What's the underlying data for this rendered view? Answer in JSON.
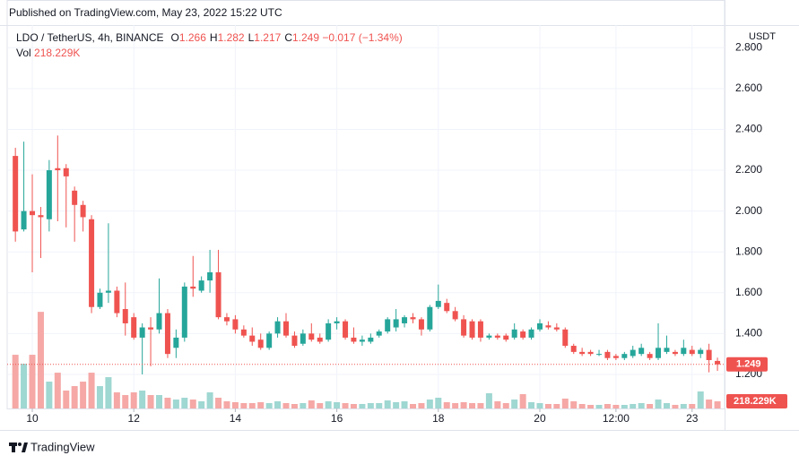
{
  "header": "Published on TradingView.com, May 23, 2022 15:22 UTC",
  "footer": "TradingView",
  "chart_data": {
    "type": "candlestick",
    "legend": {
      "symbol": "LDO / TetherUS, 4h, BINANCE",
      "fields": [
        {
          "label": "O",
          "value": 1.266
        },
        {
          "label": "H",
          "value": 1.282
        },
        {
          "label": "L",
          "value": 1.217
        },
        {
          "label": "C",
          "value": 1.249
        }
      ],
      "change": "−0.017 (−1.34%)",
      "volume_label": "Vol"
    },
    "y_unit": "USDT",
    "up_color": "#26a69a",
    "down_color": "#ef5350",
    "volume_up_color": "#9fd7d2",
    "volume_down_color": "#f5a8a6",
    "grid": true,
    "xlim": [
      9.505,
      23.64
    ],
    "xticks": [
      10,
      12,
      14,
      16,
      18,
      20,
      {
        "value": 21.5,
        "label": "12:00"
      },
      23
    ],
    "ylim": [
      1.033,
      2.911
    ],
    "yticks": [
      {
        "value": 1.2,
        "label": "1.200"
      },
      {
        "value": 1.4,
        "label": "1.400"
      },
      {
        "value": 1.6,
        "label": "1.600"
      },
      {
        "value": 1.8,
        "label": "1.800"
      },
      {
        "value": 2.0,
        "label": "2.000"
      },
      {
        "value": 2.2,
        "label": "2.200"
      },
      {
        "value": 2.4,
        "label": "2.400"
      },
      {
        "value": 2.6,
        "label": "2.600"
      },
      {
        "value": 2.8,
        "label": "2.800"
      }
    ],
    "volume_lim": [
      0,
      11700000
    ],
    "last_price": 1.249,
    "last_volume": {
      "value": 218229,
      "label": "218.229K"
    },
    "x": [
      9.667,
      9.833,
      10,
      10.167,
      10.333,
      10.5,
      10.667,
      10.833,
      11,
      11.167,
      11.333,
      11.5,
      11.667,
      11.833,
      12,
      12.167,
      12.333,
      12.5,
      12.667,
      12.833,
      13,
      13.167,
      13.333,
      13.5,
      13.667,
      13.833,
      14,
      14.167,
      14.333,
      14.5,
      14.667,
      14.833,
      15,
      15.167,
      15.333,
      15.5,
      15.667,
      15.833,
      16,
      16.167,
      16.333,
      16.5,
      16.667,
      16.833,
      17,
      17.167,
      17.333,
      17.5,
      17.667,
      17.833,
      18,
      18.167,
      18.333,
      18.5,
      18.667,
      18.833,
      19,
      19.167,
      19.333,
      19.5,
      19.667,
      19.833,
      20,
      20.167,
      20.333,
      20.5,
      20.667,
      20.833,
      21,
      21.167,
      21.333,
      21.5,
      21.667,
      21.833,
      22,
      22.167,
      22.333,
      22.5,
      22.667,
      22.833,
      23,
      23.167,
      23.333,
      23.5
    ],
    "open": [
      2.27,
      1.91,
      2.0,
      1.98,
      1.96,
      2.21,
      2.21,
      2.1,
      2.03,
      1.96,
      1.53,
      1.6,
      1.61,
      1.52,
      1.48,
      1.38,
      1.43,
      1.42,
      1.5,
      1.33,
      1.38,
      1.63,
      1.61,
      1.66,
      1.7,
      1.48,
      1.47,
      1.42,
      1.39,
      1.37,
      1.33,
      1.4,
      1.46,
      1.39,
      1.35,
      1.4,
      1.38,
      1.37,
      1.45,
      1.46,
      1.38,
      1.36,
      1.36,
      1.39,
      1.41,
      1.43,
      1.45,
      1.48,
      1.47,
      1.42,
      1.53,
      1.55,
      1.51,
      1.47,
      1.46,
      1.46,
      1.38,
      1.39,
      1.39,
      1.38,
      1.41,
      1.38,
      1.42,
      1.44,
      1.43,
      1.42,
      1.34,
      1.31,
      1.31,
      1.3,
      1.31,
      1.29,
      1.28,
      1.29,
      1.3,
      1.3,
      1.28,
      1.31,
      1.31,
      1.3,
      1.32,
      1.3,
      1.32,
      1.266
    ],
    "high": [
      2.31,
      2.34,
      2.18,
      2.02,
      2.25,
      2.37,
      2.23,
      2.12,
      2.05,
      1.98,
      1.62,
      1.94,
      1.63,
      1.65,
      1.5,
      1.45,
      1.48,
      1.67,
      1.52,
      1.42,
      1.65,
      1.78,
      1.68,
      1.81,
      1.81,
      1.5,
      1.49,
      1.44,
      1.43,
      1.4,
      1.41,
      1.48,
      1.5,
      1.41,
      1.42,
      1.45,
      1.4,
      1.47,
      1.48,
      1.47,
      1.43,
      1.39,
      1.4,
      1.42,
      1.48,
      1.52,
      1.49,
      1.5,
      1.48,
      1.54,
      1.64,
      1.57,
      1.53,
      1.49,
      1.47,
      1.47,
      1.4,
      1.4,
      1.4,
      1.45,
      1.42,
      1.43,
      1.47,
      1.46,
      1.45,
      1.43,
      1.35,
      1.33,
      1.32,
      1.32,
      1.32,
      1.3,
      1.31,
      1.34,
      1.35,
      1.31,
      1.45,
      1.39,
      1.32,
      1.37,
      1.34,
      1.33,
      1.35,
      1.282
    ],
    "low": [
      1.85,
      1.9,
      1.7,
      1.77,
      1.9,
      1.95,
      1.92,
      1.85,
      1.9,
      1.5,
      1.52,
      1.55,
      1.48,
      1.39,
      1.37,
      1.2,
      1.24,
      1.4,
      1.28,
      1.28,
      1.36,
      1.58,
      1.6,
      1.6,
      1.47,
      1.44,
      1.4,
      1.38,
      1.34,
      1.32,
      1.32,
      1.38,
      1.38,
      1.33,
      1.34,
      1.36,
      1.35,
      1.36,
      1.42,
      1.37,
      1.35,
      1.34,
      1.35,
      1.38,
      1.4,
      1.41,
      1.43,
      1.45,
      1.39,
      1.41,
      1.52,
      1.5,
      1.46,
      1.38,
      1.37,
      1.36,
      1.37,
      1.37,
      1.36,
      1.37,
      1.37,
      1.37,
      1.41,
      1.42,
      1.41,
      1.33,
      1.3,
      1.29,
      1.29,
      1.29,
      1.27,
      1.27,
      1.27,
      1.28,
      1.29,
      1.27,
      1.27,
      1.3,
      1.29,
      1.29,
      1.29,
      1.28,
      1.21,
      1.217
    ],
    "close": [
      1.9,
      2.0,
      1.98,
      1.97,
      2.2,
      2.2,
      2.17,
      2.03,
      1.97,
      1.53,
      1.6,
      1.61,
      1.5,
      1.45,
      1.38,
      1.43,
      1.42,
      1.5,
      1.3,
      1.38,
      1.63,
      1.62,
      1.66,
      1.7,
      1.48,
      1.46,
      1.42,
      1.39,
      1.36,
      1.33,
      1.4,
      1.46,
      1.39,
      1.34,
      1.4,
      1.37,
      1.36,
      1.45,
      1.46,
      1.38,
      1.36,
      1.37,
      1.38,
      1.41,
      1.47,
      1.47,
      1.48,
      1.47,
      1.42,
      1.53,
      1.56,
      1.51,
      1.47,
      1.39,
      1.38,
      1.38,
      1.39,
      1.38,
      1.37,
      1.42,
      1.38,
      1.42,
      1.45,
      1.43,
      1.42,
      1.34,
      1.31,
      1.3,
      1.3,
      1.3,
      1.28,
      1.28,
      1.3,
      1.32,
      1.33,
      1.28,
      1.33,
      1.33,
      1.3,
      1.33,
      1.3,
      1.32,
      1.27,
      1.249
    ],
    "volume": [
      1638000,
      1365000,
      1638000,
      2948400,
      819000,
      1092000,
      546000,
      682500,
      819000,
      1092000,
      682500,
      955500,
      491400,
      409500,
      491400,
      546000,
      409500,
      409500,
      327600,
      273000,
      327600,
      273000,
      218400,
      491400,
      327600,
      218400,
      191100,
      163800,
      163800,
      191100,
      163800,
      218400,
      163800,
      136500,
      163800,
      245700,
      163800,
      218400,
      191100,
      163800,
      136500,
      136500,
      163800,
      163800,
      245700,
      191100,
      218400,
      136500,
      163800,
      273000,
      327600,
      191100,
      163800,
      191100,
      163800,
      163800,
      464100,
      218400,
      163800,
      273000,
      436800,
      191100,
      163800,
      136500,
      136500,
      300300,
      218400,
      136500,
      109200,
      109200,
      136500,
      109200,
      109200,
      136500,
      163800,
      136500,
      273000,
      163800,
      109200,
      136500,
      136500,
      518700,
      273000,
      218229
    ]
  }
}
